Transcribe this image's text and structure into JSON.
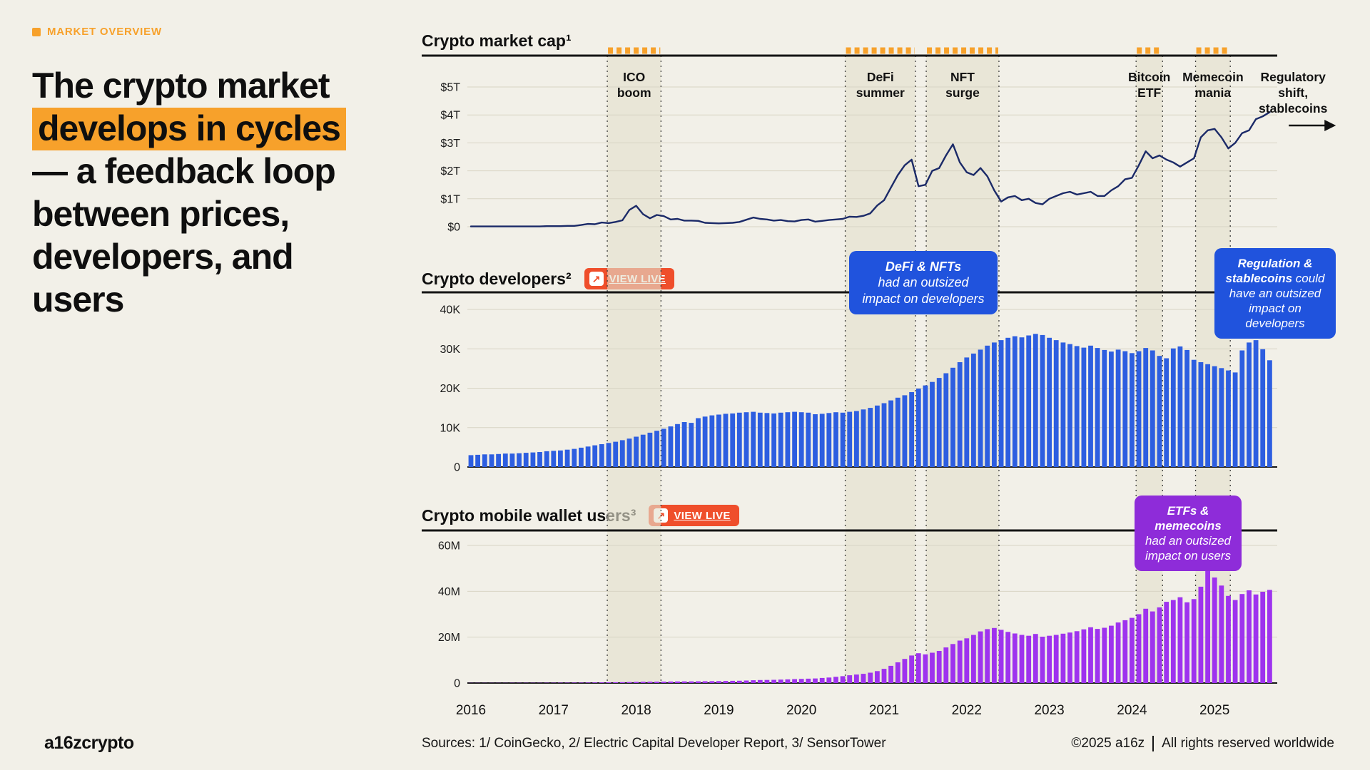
{
  "page": {
    "eyebrow": "MARKET OVERVIEW",
    "headline_pre": "The crypto market ",
    "headline_highlight": "develops in cycles",
    "headline_post": " — a feedback loop between prices, developers, and users",
    "logo": "a16zcrypto",
    "footer_sources": "Sources: 1/ CoinGecko, 2/ Electric Capital Developer Report, 3/ SensorTower",
    "footer_copyright": "©2025 a16z",
    "footer_rights": "All rights reserved worldwide"
  },
  "buttons": {
    "view_live": "VIEW LIVE"
  },
  "colors": {
    "background": "#f2f0e8",
    "accent_orange": "#f7a12b",
    "button_vermilion": "#ef4e2b",
    "line_navy": "#1b2a68",
    "bars_blue": "#2d5ee0",
    "bars_purple": "#9e33ee",
    "callout_blue": "#2053dd",
    "callout_purple": "#8e2cd9"
  },
  "callouts": [
    {
      "bold": "DeFi & NFTs",
      "rest": "had an outsized impact on developers",
      "color": "#2053dd"
    },
    {
      "bold": "Regulation & stablecoins",
      "rest": " could have an outsized impact on developers",
      "color": "#2053dd"
    },
    {
      "bold": "ETFs & memecoins",
      "rest": "had an outsized impact on users",
      "color": "#8e2cd9"
    }
  ],
  "chart_data": {
    "x_year_labels": [
      "2016",
      "2017",
      "2018",
      "2019",
      "2020",
      "2021",
      "2022",
      "2023",
      "2024",
      "2025"
    ],
    "events": [
      {
        "label": "ICO\nboom",
        "start": 2017.65,
        "end": 2018.3
      },
      {
        "label": "DeFi\nsummer",
        "start": 2020.53,
        "end": 2021.38
      },
      {
        "label": "NFT\nsurge",
        "start": 2021.51,
        "end": 2022.39
      },
      {
        "label": "Bitcoin\nETF",
        "start": 2024.05,
        "end": 2024.37
      },
      {
        "label": "Memecoin\nmania",
        "start": 2024.77,
        "end": 2025.19
      },
      {
        "label": "Regulatory\nshift,\nstablecoins",
        "center": 2025.95,
        "arrow": true
      }
    ],
    "charts": [
      {
        "type": "line",
        "title": "Crypto market cap¹",
        "unit": "USD trillions",
        "color": "#1b2a68",
        "x_start": 2016.0,
        "x_step_months": 1,
        "ylim": [
          0,
          5
        ],
        "grid": true,
        "y_ticks": [
          {
            "v": 0,
            "label": "$0"
          },
          {
            "v": 1,
            "label": "$1T"
          },
          {
            "v": 2,
            "label": "$2T"
          },
          {
            "v": 3,
            "label": "$3T"
          },
          {
            "v": 4,
            "label": "$4T"
          },
          {
            "v": 5,
            "label": "$5T"
          }
        ],
        "values": [
          0.01,
          0.01,
          0.01,
          0.01,
          0.01,
          0.01,
          0.01,
          0.01,
          0.01,
          0.01,
          0.01,
          0.02,
          0.02,
          0.02,
          0.03,
          0.03,
          0.06,
          0.1,
          0.09,
          0.15,
          0.13,
          0.17,
          0.23,
          0.6,
          0.75,
          0.45,
          0.3,
          0.42,
          0.38,
          0.26,
          0.28,
          0.22,
          0.22,
          0.21,
          0.14,
          0.13,
          0.12,
          0.13,
          0.14,
          0.17,
          0.25,
          0.33,
          0.28,
          0.26,
          0.22,
          0.24,
          0.2,
          0.19,
          0.24,
          0.26,
          0.18,
          0.21,
          0.24,
          0.26,
          0.28,
          0.36,
          0.35,
          0.39,
          0.48,
          0.76,
          0.95,
          1.4,
          1.85,
          2.2,
          2.4,
          1.45,
          1.5,
          2.0,
          2.1,
          2.55,
          2.95,
          2.3,
          1.95,
          1.85,
          2.1,
          1.8,
          1.3,
          0.9,
          1.05,
          1.1,
          0.95,
          1.0,
          0.85,
          0.8,
          1.0,
          1.1,
          1.2,
          1.25,
          1.15,
          1.2,
          1.25,
          1.1,
          1.1,
          1.3,
          1.45,
          1.7,
          1.75,
          2.2,
          2.7,
          2.45,
          2.55,
          2.4,
          2.3,
          2.15,
          2.3,
          2.45,
          3.2,
          3.45,
          3.5,
          3.2,
          2.8,
          3.0,
          3.35,
          3.45,
          3.85,
          3.95,
          4.1
        ]
      },
      {
        "type": "bar",
        "title": "Crypto developers²",
        "unit": "thousands of developers, monthly",
        "color": "#2d5ee0",
        "bar_name": "developer-bar",
        "x_start": 2016.0,
        "x_step_months": 1,
        "ylim": [
          0,
          40
        ],
        "grid": true,
        "y_ticks": [
          {
            "v": 0,
            "label": "0"
          },
          {
            "v": 10,
            "label": "10K"
          },
          {
            "v": 20,
            "label": "20K"
          },
          {
            "v": 30,
            "label": "30K"
          },
          {
            "v": 40,
            "label": "40K"
          }
        ],
        "values": [
          3.0,
          3.1,
          3.2,
          3.2,
          3.3,
          3.4,
          3.4,
          3.5,
          3.6,
          3.7,
          3.8,
          4.0,
          4.1,
          4.2,
          4.4,
          4.6,
          4.9,
          5.2,
          5.5,
          5.8,
          6.1,
          6.4,
          6.8,
          7.2,
          7.7,
          8.2,
          8.7,
          9.2,
          9.7,
          10.3,
          10.9,
          11.4,
          11.2,
          12.4,
          12.8,
          13.1,
          13.3,
          13.5,
          13.6,
          13.8,
          13.9,
          14.0,
          13.8,
          13.7,
          13.6,
          13.8,
          13.9,
          14.0,
          13.9,
          13.8,
          13.4,
          13.5,
          13.7,
          13.9,
          13.8,
          14.0,
          14.2,
          14.6,
          15.0,
          15.6,
          16.2,
          16.9,
          17.6,
          18.2,
          19.0,
          19.9,
          20.7,
          21.6,
          22.6,
          23.8,
          25.2,
          26.6,
          27.8,
          28.8,
          29.8,
          30.8,
          31.6,
          32.2,
          32.8,
          33.2,
          32.9,
          33.4,
          33.8,
          33.5,
          32.8,
          32.2,
          31.6,
          31.2,
          30.7,
          30.3,
          30.8,
          30.2,
          29.7,
          29.3,
          29.8,
          29.4,
          28.9,
          29.4,
          30.2,
          29.6,
          28.2,
          27.6,
          30.1,
          30.6,
          29.7,
          27.2,
          26.6,
          26.1,
          25.6,
          25.1,
          24.5,
          24.0,
          29.6,
          31.6,
          32.2,
          29.9,
          27.1
        ]
      },
      {
        "type": "bar",
        "title": "Crypto mobile wallet users³",
        "unit": "millions of users, monthly",
        "color": "#9e33ee",
        "bar_name": "wallet-user-bar",
        "x_start": 2016.0,
        "x_step_months": 1,
        "ylim": [
          0,
          60
        ],
        "grid": true,
        "y_ticks": [
          {
            "v": 0,
            "label": "0"
          },
          {
            "v": 20,
            "label": "20M"
          },
          {
            "v": 40,
            "label": "40M"
          },
          {
            "v": 60,
            "label": "60M"
          }
        ],
        "values": [
          0.05,
          0.05,
          0.06,
          0.06,
          0.07,
          0.07,
          0.08,
          0.08,
          0.09,
          0.1,
          0.1,
          0.12,
          0.13,
          0.14,
          0.16,
          0.18,
          0.2,
          0.22,
          0.25,
          0.28,
          0.3,
          0.33,
          0.38,
          0.45,
          0.5,
          0.55,
          0.58,
          0.6,
          0.62,
          0.65,
          0.67,
          0.7,
          0.72,
          0.75,
          0.78,
          0.8,
          0.85,
          0.9,
          0.95,
          1.0,
          1.1,
          1.2,
          1.3,
          1.35,
          1.4,
          1.5,
          1.6,
          1.7,
          1.8,
          1.9,
          2.0,
          2.2,
          2.4,
          2.7,
          3.0,
          3.4,
          3.7,
          4.0,
          4.5,
          5.2,
          6.2,
          7.5,
          9.0,
          10.5,
          12.0,
          13.0,
          12.5,
          13.2,
          14.0,
          15.5,
          17.0,
          18.5,
          19.5,
          21.0,
          22.5,
          23.5,
          24.0,
          23.2,
          22.3,
          21.6,
          21.0,
          20.6,
          21.4,
          20.2,
          20.6,
          21.0,
          21.5,
          22.0,
          22.6,
          23.4,
          24.3,
          23.6,
          24.1,
          25.0,
          26.4,
          27.4,
          28.4,
          30.0,
          32.4,
          31.2,
          33.0,
          35.4,
          36.2,
          37.4,
          35.2,
          36.6,
          42.0,
          50.0,
          46.0,
          42.5,
          38.0,
          36.2,
          38.8,
          40.4,
          38.6,
          39.8,
          40.6
        ]
      }
    ]
  }
}
